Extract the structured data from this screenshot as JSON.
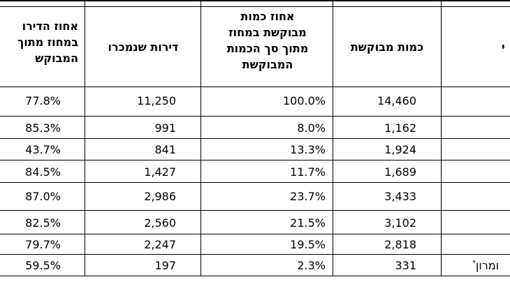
{
  "table": {
    "headers": {
      "pct_apartments_col": [
        "אחוז הדירו",
        "במחוז מתוך",
        "המבוקש"
      ],
      "apartments_sold_col": [
        "דירות שנמכרו"
      ],
      "pct_quantity_col": [
        "אחוז כמות",
        "מבוקשת במחוז",
        "מתוך סך הכמות",
        "המבוקשת"
      ],
      "requested_quantity_col": [
        "כמות מבוקשת"
      ],
      "district_col": [
        "י"
      ]
    },
    "rows": [
      {
        "pct_apartments": "77.8%",
        "sold": "11,250",
        "pct_quantity": "100.0%",
        "requested": "14,460",
        "district": ""
      },
      {
        "pct_apartments": "85.3%",
        "sold": "991",
        "pct_quantity": "8.0%",
        "requested": "1,162",
        "district": ""
      },
      {
        "pct_apartments": "43.7%",
        "sold": "841",
        "pct_quantity": "13.3%",
        "requested": "1,924",
        "district": ""
      },
      {
        "pct_apartments": "84.5%",
        "sold": "1,427",
        "pct_quantity": "11.7%",
        "requested": "1,689",
        "district": ""
      },
      {
        "pct_apartments": "87.0%",
        "sold": "2,986",
        "pct_quantity": "23.7%",
        "requested": "3,433",
        "district": ""
      },
      {
        "pct_apartments": "82.5%",
        "sold": "2,560",
        "pct_quantity": "21.5%",
        "requested": "3,102",
        "district": ""
      },
      {
        "pct_apartments": "79.7%",
        "sold": "2,247",
        "pct_quantity": "19.5%",
        "requested": "2,818",
        "district": ""
      },
      {
        "pct_apartments": "59.5%",
        "sold": "197",
        "pct_quantity": "2.3%",
        "requested": "331",
        "district": "ומרון",
        "district_mark": "*"
      }
    ]
  }
}
